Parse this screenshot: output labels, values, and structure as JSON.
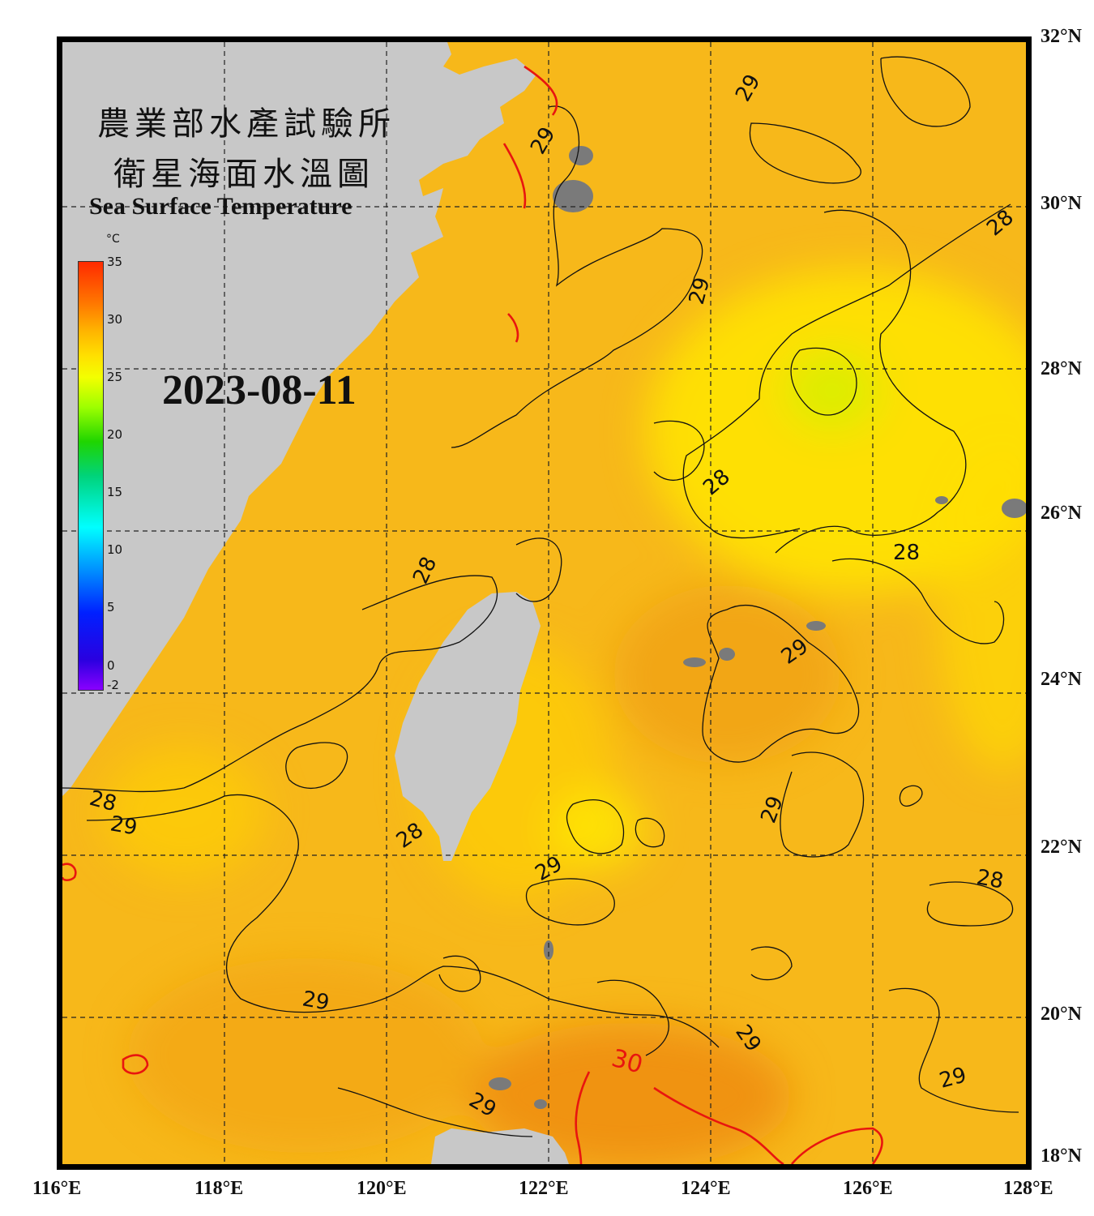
{
  "title": {
    "line1": "農業部水產試驗所",
    "line2": "衛星海面水溫圖",
    "english": "Sea Surface Temperature"
  },
  "date": "2023-08-11",
  "colorbar": {
    "unit": "°C",
    "ticks": [
      "35",
      "30",
      "25",
      "20",
      "15",
      "10",
      "5",
      "0",
      "-2"
    ],
    "min": -2,
    "max": 35
  },
  "axes": {
    "latitude_labels": [
      "32°N",
      "30°N",
      "28°N",
      "26°N",
      "24°N",
      "22°N",
      "20°N",
      "18°N"
    ],
    "longitude_labels": [
      "116°E",
      "118°E",
      "120°E",
      "122°E",
      "124°E",
      "126°E",
      "128°E"
    ]
  },
  "contour_labels": {
    "c29_a": "29",
    "c29_b": "29",
    "c28_a": "28",
    "c29_c": "29",
    "c28_b": "28",
    "c28_c": "28",
    "c28_d": "28",
    "c29_d": "29",
    "c29_e": "29",
    "c28_e": "28",
    "c29_f": "29",
    "c29_g": "29",
    "c28_f": "28",
    "c29_h": "29",
    "c29_i": "29",
    "c28_g": "28",
    "c29_j": "29",
    "c30": "30"
  },
  "colors": {
    "sea_warm": "#f7b81a",
    "sea_hot": "#f08c10",
    "sea_cool": "#ffe600",
    "land": "#c8c8c8",
    "contour_30": "#e8150f"
  }
}
